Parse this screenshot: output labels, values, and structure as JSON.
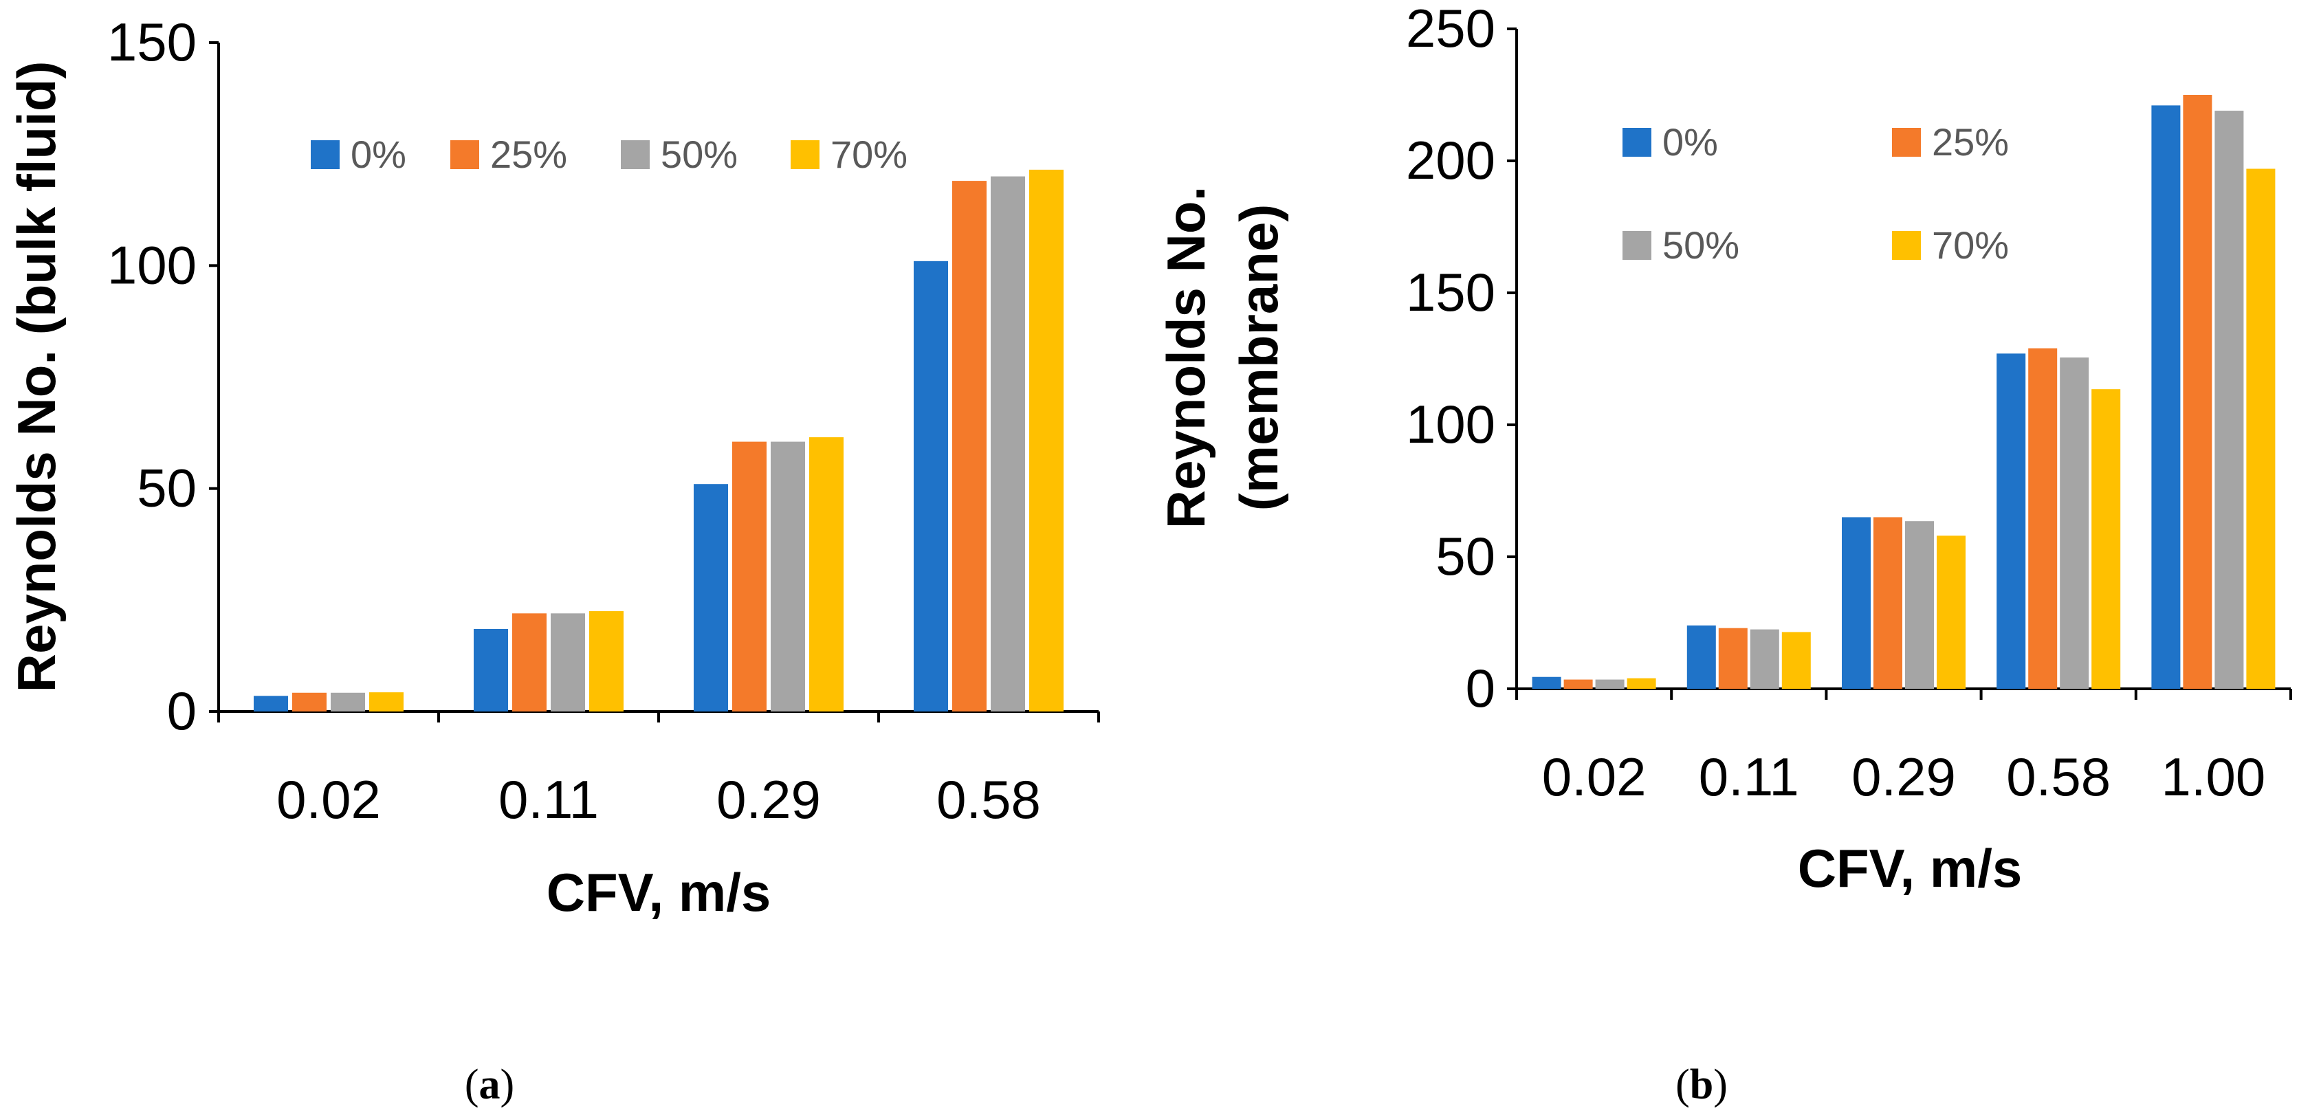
{
  "chart_data": [
    {
      "type": "bar",
      "panel": "a",
      "categories": [
        "0.02",
        "0.11",
        "0.29",
        "0.58"
      ],
      "series": [
        {
          "name": "0%",
          "color": "#1F73C8",
          "values": [
            3.5,
            18.5,
            51,
            101
          ]
        },
        {
          "name": "25%",
          "color": "#F47A2A",
          "values": [
            4.2,
            22,
            60.5,
            119
          ]
        },
        {
          "name": "50%",
          "color": "#A5A5A5",
          "values": [
            4.2,
            22,
            60.5,
            120
          ]
        },
        {
          "name": "70%",
          "color": "#FFC000",
          "values": [
            4.3,
            22.5,
            61.5,
            121.5
          ]
        }
      ],
      "xlabel": "CFV, m/s",
      "ylabel": [
        "Reynolds No. (bulk fluid)"
      ],
      "ylim": [
        0,
        150
      ],
      "yticks": [
        "0",
        "50",
        "100",
        "150"
      ],
      "legend_position": "top",
      "grid": false
    },
    {
      "type": "bar",
      "panel": "b",
      "categories": [
        "0.02",
        "0.11",
        "0.29",
        "0.58",
        "1.00"
      ],
      "series": [
        {
          "name": "0%",
          "color": "#1F73C8",
          "values": [
            4.5,
            24,
            65,
            127,
            221
          ]
        },
        {
          "name": "25%",
          "color": "#F47A2A",
          "values": [
            3.5,
            23,
            65,
            129,
            225
          ]
        },
        {
          "name": "50%",
          "color": "#A5A5A5",
          "values": [
            3.5,
            22.5,
            63.5,
            125.5,
            219
          ]
        },
        {
          "name": "70%",
          "color": "#FFC000",
          "values": [
            4,
            21.5,
            58,
            113.5,
            197
          ]
        }
      ],
      "xlabel": "CFV, m/s",
      "ylabel": [
        "Reynolds No.",
        "(membrane)"
      ],
      "ylim": [
        0,
        250
      ],
      "yticks": [
        "0",
        "50",
        "100",
        "150",
        "200",
        "250"
      ],
      "legend_position": "top-left",
      "grid": false
    }
  ],
  "captions": {
    "a": {
      "open": "(",
      "letter": "a",
      "close": ")"
    },
    "b": {
      "open": "(",
      "letter": "b",
      "close": ")"
    }
  }
}
